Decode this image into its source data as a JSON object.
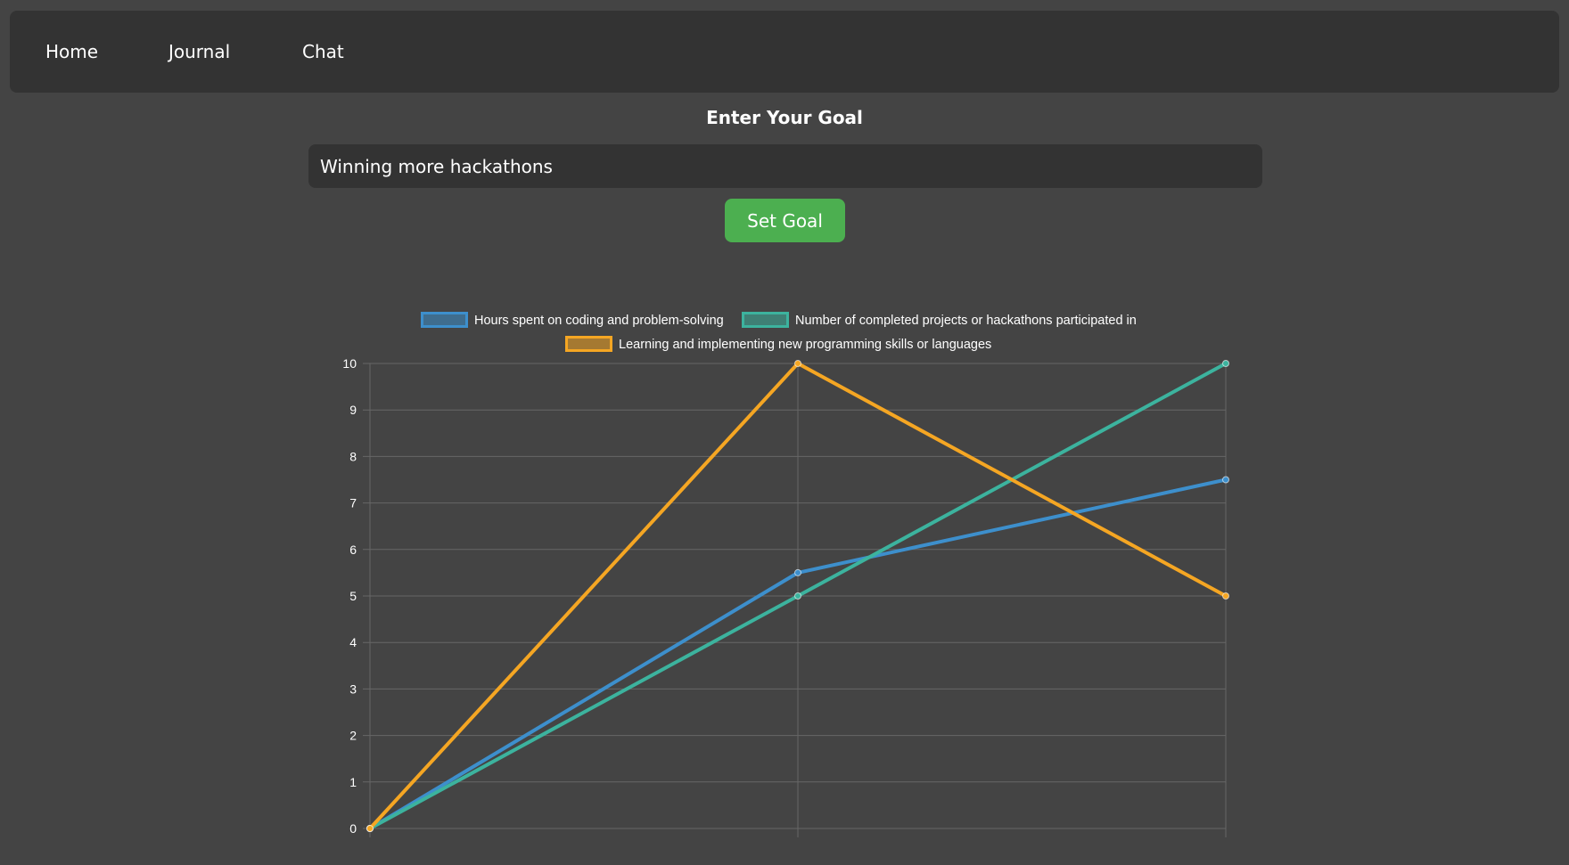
{
  "nav": {
    "items": [
      {
        "label": "Home"
      },
      {
        "label": "Journal"
      },
      {
        "label": "Chat"
      }
    ]
  },
  "goal": {
    "heading": "Enter Your Goal",
    "input_value": "Winning more hackathons",
    "button_label": "Set Goal"
  },
  "colors": {
    "background": "#444444",
    "panel": "#333333",
    "accent": "#4caf50"
  },
  "chart_data": {
    "type": "line",
    "x": [
      0,
      1,
      2
    ],
    "ylim": [
      0,
      10
    ],
    "yticks": [
      0,
      1,
      2,
      3,
      4,
      5,
      6,
      7,
      8,
      9,
      10
    ],
    "grid": true,
    "legend_placement": "top",
    "series": [
      {
        "name": "Hours spent on coding and problem-solving",
        "color": "#3d8fcc",
        "values": [
          0,
          5.5,
          7.5
        ]
      },
      {
        "name": "Number of completed projects or hackathons participated in",
        "color": "#3cb39e",
        "values": [
          0,
          5,
          10
        ]
      },
      {
        "name": "Learning and implementing new programming skills or languages",
        "color": "#f5a623",
        "values": [
          0,
          10,
          5
        ]
      }
    ]
  }
}
